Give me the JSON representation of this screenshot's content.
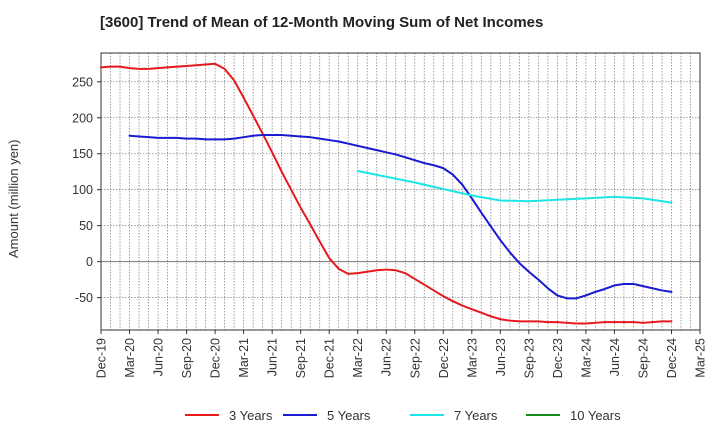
{
  "chart_data": {
    "type": "line",
    "title": "[3600]  Trend of Mean of 12-Month Moving Sum of Net Incomes",
    "ylabel": "Amount (million yen)",
    "xlabel": "",
    "ylim": [
      -95,
      290
    ],
    "yticks": [
      250,
      200,
      150,
      100,
      50,
      0,
      -50
    ],
    "x_ticks": [
      "Dec-19",
      "Mar-20",
      "Jun-20",
      "Sep-20",
      "Dec-20",
      "Mar-21",
      "Jun-21",
      "Sep-21",
      "Dec-21",
      "Mar-22",
      "Jun-22",
      "Sep-22",
      "Dec-22",
      "Mar-23",
      "Jun-23",
      "Sep-23",
      "Dec-23",
      "Mar-24",
      "Jun-24",
      "Sep-24",
      "Dec-24",
      "Mar-25"
    ],
    "grid": true,
    "legend_position": "bottom",
    "series": [
      {
        "name": "3 Years",
        "color": "#e8191c",
        "points": [
          [
            "Dec-19",
            270
          ],
          [
            "Jan-20",
            271
          ],
          [
            "Feb-20",
            271
          ],
          [
            "Mar-20",
            269
          ],
          [
            "Apr-20",
            268
          ],
          [
            "May-20",
            268
          ],
          [
            "Jun-20",
            269
          ],
          [
            "Jul-20",
            270
          ],
          [
            "Aug-20",
            271
          ],
          [
            "Sep-20",
            272
          ],
          [
            "Oct-20",
            273
          ],
          [
            "Nov-20",
            274
          ],
          [
            "Dec-20",
            275
          ],
          [
            "Jan-21",
            268
          ],
          [
            "Feb-21",
            252
          ],
          [
            "Mar-21",
            228
          ],
          [
            "Apr-21",
            203
          ],
          [
            "May-21",
            178
          ],
          [
            "Jun-21",
            152
          ],
          [
            "Jul-21",
            125
          ],
          [
            "Aug-21",
            100
          ],
          [
            "Sep-21",
            75
          ],
          [
            "Oct-21",
            52
          ],
          [
            "Nov-21",
            28
          ],
          [
            "Dec-21",
            5
          ],
          [
            "Jan-22",
            -10
          ],
          [
            "Feb-22",
            -17
          ],
          [
            "Mar-22",
            -16
          ],
          [
            "Apr-22",
            -14
          ],
          [
            "May-22",
            -12
          ],
          [
            "Jun-22",
            -11
          ],
          [
            "Jul-22",
            -12
          ],
          [
            "Aug-22",
            -16
          ],
          [
            "Sep-22",
            -24
          ],
          [
            "Oct-22",
            -32
          ],
          [
            "Nov-22",
            -40
          ],
          [
            "Dec-22",
            -48
          ],
          [
            "Jan-23",
            -55
          ],
          [
            "Feb-23",
            -61
          ],
          [
            "Mar-23",
            -66
          ],
          [
            "Apr-23",
            -71
          ],
          [
            "May-23",
            -76
          ],
          [
            "Jun-23",
            -80
          ],
          [
            "Jul-23",
            -82
          ],
          [
            "Aug-23",
            -83
          ],
          [
            "Sep-23",
            -83
          ],
          [
            "Oct-23",
            -83
          ],
          [
            "Nov-23",
            -84
          ],
          [
            "Dec-23",
            -84
          ],
          [
            "Jan-24",
            -85
          ],
          [
            "Feb-24",
            -86
          ],
          [
            "Mar-24",
            -86
          ],
          [
            "Apr-24",
            -85
          ],
          [
            "May-24",
            -84
          ],
          [
            "Jun-24",
            -84
          ],
          [
            "Jul-24",
            -84
          ],
          [
            "Aug-24",
            -84
          ],
          [
            "Sep-24",
            -85
          ],
          [
            "Oct-24",
            -84
          ],
          [
            "Nov-24",
            -83
          ],
          [
            "Dec-24",
            -83
          ]
        ]
      },
      {
        "name": "5 Years",
        "color": "#1a1ad1",
        "points": [
          [
            "Mar-20",
            175
          ],
          [
            "Apr-20",
            174
          ],
          [
            "May-20",
            173
          ],
          [
            "Jun-20",
            172
          ],
          [
            "Jul-20",
            172
          ],
          [
            "Aug-20",
            172
          ],
          [
            "Sep-20",
            171
          ],
          [
            "Oct-20",
            171
          ],
          [
            "Nov-20",
            170
          ],
          [
            "Dec-20",
            170
          ],
          [
            "Jan-21",
            170
          ],
          [
            "Feb-21",
            171
          ],
          [
            "Mar-21",
            173
          ],
          [
            "Apr-21",
            175
          ],
          [
            "May-21",
            176
          ],
          [
            "Jun-21",
            176
          ],
          [
            "Jul-21",
            176
          ],
          [
            "Aug-21",
            175
          ],
          [
            "Sep-21",
            174
          ],
          [
            "Oct-21",
            173
          ],
          [
            "Nov-21",
            171
          ],
          [
            "Dec-21",
            169
          ],
          [
            "Jan-22",
            167
          ],
          [
            "Feb-22",
            164
          ],
          [
            "Mar-22",
            161
          ],
          [
            "Apr-22",
            158
          ],
          [
            "May-22",
            155
          ],
          [
            "Jun-22",
            152
          ],
          [
            "Jul-22",
            149
          ],
          [
            "Aug-22",
            145
          ],
          [
            "Sep-22",
            141
          ],
          [
            "Oct-22",
            137
          ],
          [
            "Nov-22",
            134
          ],
          [
            "Dec-22",
            130
          ],
          [
            "Jan-23",
            121
          ],
          [
            "Feb-23",
            107
          ],
          [
            "Mar-23",
            88
          ],
          [
            "Apr-23",
            68
          ],
          [
            "May-23",
            49
          ],
          [
            "Jun-23",
            30
          ],
          [
            "Jul-23",
            13
          ],
          [
            "Aug-23",
            -2
          ],
          [
            "Sep-23",
            -14
          ],
          [
            "Oct-23",
            -25
          ],
          [
            "Nov-23",
            -37
          ],
          [
            "Dec-23",
            -47
          ],
          [
            "Jan-24",
            -51
          ],
          [
            "Feb-24",
            -51
          ],
          [
            "Mar-24",
            -47
          ],
          [
            "Apr-24",
            -42
          ],
          [
            "May-24",
            -38
          ],
          [
            "Jun-24",
            -33
          ],
          [
            "Jul-24",
            -31
          ],
          [
            "Aug-24",
            -31
          ],
          [
            "Sep-24",
            -34
          ],
          [
            "Oct-24",
            -37
          ],
          [
            "Nov-24",
            -40
          ],
          [
            "Dec-24",
            -42
          ]
        ]
      },
      {
        "name": "7 Years",
        "color": "#1ee5e5",
        "points": [
          [
            "Mar-22",
            126
          ],
          [
            "Jun-22",
            118
          ],
          [
            "Sep-22",
            110
          ],
          [
            "Dec-22",
            101
          ],
          [
            "Mar-23",
            92
          ],
          [
            "Jun-23",
            85
          ],
          [
            "Sep-23",
            84
          ],
          [
            "Dec-23",
            86
          ],
          [
            "Mar-24",
            88
          ],
          [
            "Jun-24",
            90
          ],
          [
            "Sep-24",
            88
          ],
          [
            "Dec-24",
            82
          ]
        ]
      },
      {
        "name": "10 Years",
        "color": "#1a8a1a",
        "points": []
      }
    ]
  }
}
